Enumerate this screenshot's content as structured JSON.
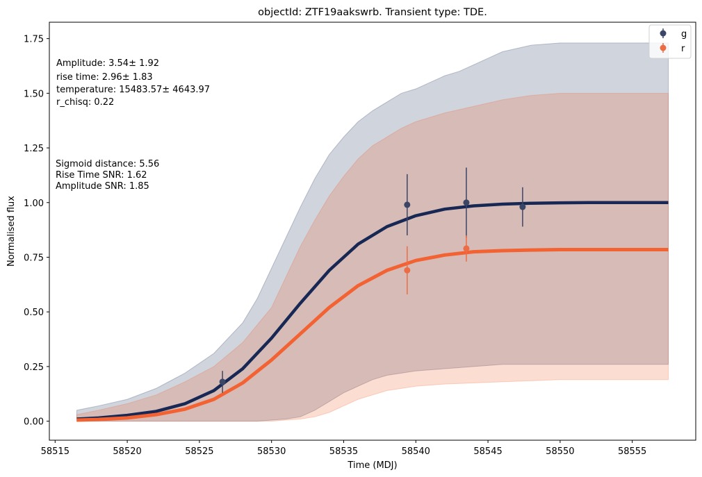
{
  "chart_data": {
    "type": "line",
    "title": "objectId: ZTF19aakswrb. Transient type: TDE.",
    "xlabel": "Time (MDJ)",
    "ylabel": "Normalised flux",
    "xlim": [
      58514.6,
      58559.4
    ],
    "ylim": [
      -0.087,
      1.825
    ],
    "xticks": [
      58515,
      58520,
      58525,
      58530,
      58535,
      58540,
      58545,
      58550,
      58555
    ],
    "yticks": [
      0.0,
      0.25,
      0.5,
      0.75,
      1.0,
      1.25,
      1.5,
      1.75
    ],
    "ytick_labels": [
      "0.00",
      "0.25",
      "0.50",
      "0.75",
      "1.00",
      "1.25",
      "1.50",
      "1.75"
    ],
    "grid": false,
    "legend_position": "top-right",
    "annotations": [
      "Amplitude: 3.54± 1.92",
      "rise time: 2.96± 1.83",
      "temperature: 15483.57± 4643.97",
      "r_chisq: 0.22",
      "Sigmoid distance: 5.56",
      "Rise Time SNR: 1.62",
      "Amplitude SNR: 1.85"
    ],
    "series": [
      {
        "name": "g",
        "color": "#162853",
        "fit": {
          "x": [
            58516.5,
            58518,
            58520,
            58522,
            58524,
            58526,
            58528,
            58530,
            58532,
            58534,
            58536,
            58538,
            58540,
            58542,
            58544,
            58546,
            58548,
            58550,
            58552,
            58554,
            58557.5
          ],
          "y": [
            0.01,
            0.015,
            0.027,
            0.045,
            0.08,
            0.14,
            0.24,
            0.38,
            0.54,
            0.69,
            0.81,
            0.89,
            0.94,
            0.97,
            0.985,
            0.993,
            0.997,
            0.999,
            1.0,
            1.0,
            1.0
          ]
        },
        "band": {
          "x": [
            58516.5,
            58518,
            58520,
            58522,
            58524,
            58526,
            58528,
            58529,
            58530,
            58531,
            58532,
            58533,
            58534,
            58535,
            58536,
            58537,
            58538,
            58539,
            58540,
            58541,
            58542,
            58543,
            58544,
            58545,
            58546,
            58548,
            58550,
            58552,
            58554,
            58557.5
          ],
          "upper": [
            0.05,
            0.07,
            0.1,
            0.15,
            0.22,
            0.31,
            0.45,
            0.56,
            0.7,
            0.84,
            0.98,
            1.11,
            1.22,
            1.3,
            1.37,
            1.42,
            1.46,
            1.5,
            1.52,
            1.55,
            1.58,
            1.6,
            1.63,
            1.66,
            1.69,
            1.72,
            1.73,
            1.73,
            1.73,
            1.73
          ],
          "lower": [
            0.0,
            0.0,
            0.0,
            0.0,
            0.0,
            0.0,
            0.0,
            0.0,
            0.005,
            0.01,
            0.02,
            0.05,
            0.09,
            0.13,
            0.16,
            0.19,
            0.21,
            0.22,
            0.23,
            0.235,
            0.24,
            0.245,
            0.25,
            0.255,
            0.26,
            0.26,
            0.26,
            0.26,
            0.26,
            0.26
          ]
        },
        "points": [
          {
            "x": 58526.6,
            "y": 0.18,
            "err": 0.05
          },
          {
            "x": 58539.4,
            "y": 0.99,
            "err": 0.14
          },
          {
            "x": 58543.5,
            "y": 1.0,
            "err": 0.16
          },
          {
            "x": 58547.4,
            "y": 0.98,
            "err": 0.09
          }
        ]
      },
      {
        "name": "r",
        "color": "#f26232",
        "fit": {
          "x": [
            58516.5,
            58518,
            58520,
            58522,
            58524,
            58526,
            58528,
            58530,
            58532,
            58534,
            58536,
            58538,
            58540,
            58542,
            58544,
            58546,
            58548,
            58550,
            58552,
            58554,
            58557.5
          ],
          "y": [
            0.005,
            0.008,
            0.015,
            0.03,
            0.055,
            0.1,
            0.175,
            0.28,
            0.4,
            0.52,
            0.62,
            0.69,
            0.735,
            0.76,
            0.775,
            0.78,
            0.783,
            0.785,
            0.785,
            0.785,
            0.785
          ],
          "width": 5
        },
        "band": {
          "x": [
            58516.5,
            58518,
            58520,
            58522,
            58524,
            58526,
            58528,
            58530,
            58531,
            58532,
            58533,
            58534,
            58535,
            58536,
            58537,
            58538,
            58539,
            58540,
            58542,
            58544,
            58546,
            58548,
            58550,
            58552,
            58554,
            58557.5
          ],
          "upper": [
            0.03,
            0.05,
            0.08,
            0.12,
            0.18,
            0.25,
            0.36,
            0.52,
            0.66,
            0.8,
            0.92,
            1.03,
            1.12,
            1.2,
            1.26,
            1.3,
            1.34,
            1.37,
            1.41,
            1.44,
            1.47,
            1.49,
            1.5,
            1.5,
            1.5,
            1.5
          ],
          "lower": [
            0.0,
            0.0,
            0.0,
            0.0,
            0.0,
            0.0,
            0.0,
            0.0,
            0.005,
            0.01,
            0.02,
            0.04,
            0.07,
            0.1,
            0.12,
            0.14,
            0.15,
            0.16,
            0.17,
            0.175,
            0.18,
            0.185,
            0.19,
            0.19,
            0.19,
            0.19
          ]
        },
        "points": [
          {
            "x": 58539.4,
            "y": 0.69,
            "err": 0.11
          },
          {
            "x": 58543.5,
            "y": 0.79,
            "err": 0.06
          }
        ]
      }
    ]
  }
}
